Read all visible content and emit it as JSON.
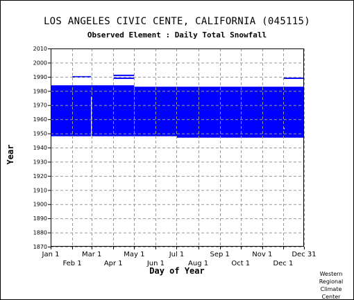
{
  "header": {
    "title": "LOS ANGELES CIVIC CENTE, CALIFORNIA   (045115)",
    "subtitle": "Observed Element : Daily Total Snowfall"
  },
  "credit": {
    "line1": "Western",
    "line2": "Regional",
    "line3": "Climate",
    "line4": "Center"
  },
  "chart_data": {
    "type": "area",
    "xlabel": "Day of Year",
    "ylabel": "Year",
    "xlim": [
      1,
      365
    ],
    "ylim": [
      1870,
      2010
    ],
    "yticks": [
      1870,
      1880,
      1890,
      1900,
      1910,
      1920,
      1930,
      1940,
      1950,
      1960,
      1970,
      1980,
      1990,
      2000,
      2010
    ],
    "xticks_top_row": [
      {
        "label": "Jan 1",
        "day": 1
      },
      {
        "label": "Mar 1",
        "day": 60
      },
      {
        "label": "May 1",
        "day": 121
      },
      {
        "label": "Jul 1",
        "day": 182
      },
      {
        "label": "Sep 1",
        "day": 244
      },
      {
        "label": "Nov 1",
        "day": 305
      },
      {
        "label": "Dec 31",
        "day": 365
      }
    ],
    "xticks_bottom_row": [
      {
        "label": "Feb 1",
        "day": 32
      },
      {
        "label": "Apr 1",
        "day": 91
      },
      {
        "label": "Jun 1",
        "day": 152
      },
      {
        "label": "Aug 1",
        "day": 213
      },
      {
        "label": "Oct 1",
        "day": 274
      },
      {
        "label": "Dec 1",
        "day": 335
      }
    ],
    "grid": true,
    "data_color": "#0000ff",
    "coverage_blocks": [
      {
        "x_start": 1,
        "x_end": 121,
        "y_start": 1948,
        "y_end": 1984
      },
      {
        "x_start": 121,
        "x_end": 182,
        "y_start": 1948,
        "y_end": 1983
      },
      {
        "x_start": 182,
        "x_end": 365,
        "y_start": 1947,
        "y_end": 1983
      }
    ],
    "coverage_gaps": [
      {
        "x_start": 59,
        "x_end": 60,
        "y_start": 1948,
        "y_end": 1976
      },
      {
        "x_start": 336,
        "x_end": 337,
        "y_start": 1953,
        "y_end": 1954
      }
    ],
    "record_lines": [
      {
        "x_start": 32,
        "x_end": 59,
        "year": 1990
      },
      {
        "x_start": 91,
        "x_end": 121,
        "year": 1991
      },
      {
        "x_start": 91,
        "x_end": 121,
        "year": 1989
      },
      {
        "x_start": 335,
        "x_end": 365,
        "year": 1989
      }
    ]
  }
}
